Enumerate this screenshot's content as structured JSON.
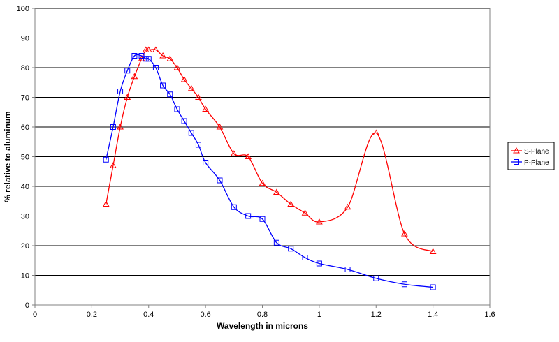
{
  "chart_data": {
    "type": "line",
    "title": "",
    "xlabel": "Wavelength  in microns",
    "ylabel": "% relative to aluminum",
    "xlim": [
      0,
      1.6
    ],
    "ylim": [
      0,
      100
    ],
    "x_ticks": [
      0,
      0.2,
      0.4,
      0.6,
      0.8,
      1,
      1.2,
      1.4,
      1.6
    ],
    "y_ticks": [
      0,
      10,
      20,
      30,
      40,
      50,
      60,
      70,
      80,
      90,
      100
    ],
    "grid": "horizontal major gridlines",
    "legend": "right",
    "series": [
      {
        "name": "S-Plane",
        "color": "#ff0000",
        "marker": "triangle",
        "x": [
          0.25,
          0.275,
          0.3,
          0.325,
          0.35,
          0.375,
          0.39,
          0.4,
          0.425,
          0.45,
          0.475,
          0.5,
          0.525,
          0.55,
          0.575,
          0.6,
          0.65,
          0.7,
          0.75,
          0.8,
          0.85,
          0.9,
          0.95,
          1.0,
          1.1,
          1.2,
          1.3,
          1.4
        ],
        "y": [
          34,
          47,
          60,
          70,
          77,
          83,
          86,
          86,
          86,
          84,
          83,
          80,
          76,
          73,
          70,
          66,
          60,
          51,
          50,
          41,
          38,
          34,
          31,
          28,
          33,
          58,
          24,
          18
        ]
      },
      {
        "name": "P-Plane",
        "color": "#0000ff",
        "marker": "square",
        "x": [
          0.25,
          0.275,
          0.3,
          0.325,
          0.35,
          0.375,
          0.39,
          0.4,
          0.425,
          0.45,
          0.475,
          0.5,
          0.525,
          0.55,
          0.575,
          0.6,
          0.65,
          0.7,
          0.75,
          0.8,
          0.85,
          0.9,
          0.95,
          1.0,
          1.1,
          1.2,
          1.3,
          1.4
        ],
        "y": [
          49,
          60,
          72,
          79,
          84,
          84,
          83,
          83,
          80,
          74,
          71,
          66,
          62,
          58,
          54,
          48,
          42,
          33,
          30,
          29,
          21,
          19,
          16,
          14,
          12,
          9,
          7,
          6
        ]
      }
    ]
  }
}
